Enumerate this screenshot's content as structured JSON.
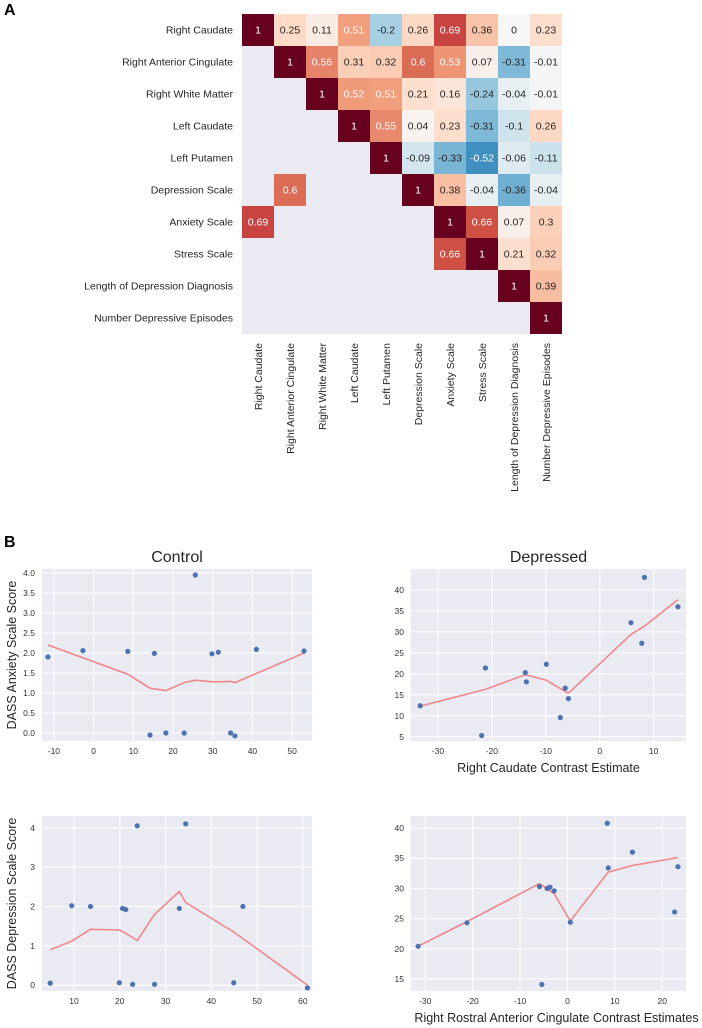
{
  "panel_labels": {
    "a": "A",
    "b": "B"
  },
  "chart_data": [
    {
      "type": "heatmap",
      "id": "correlation-matrix",
      "rows": [
        "Right Caudate",
        "Right Anterior Cingulate",
        "Right White Matter",
        "Left Caudate",
        "Left Putamen",
        "Depression Scale",
        "Anxiety Scale",
        "Stress Scale",
        "Length of Depression Diagnosis",
        "Number Depressive Episodes"
      ],
      "columns": [
        "Right Caudate",
        "Right Anterior Cingulate",
        "Right White Matter",
        "Left Caudate",
        "Left Putamen",
        "Depression Scale",
        "Anxiety Scale",
        "Stress Scale",
        "Length of Depression Diagnosis",
        "Number Depressive Episodes"
      ],
      "cells": [
        {
          "r": 0,
          "c": 0,
          "v": 1,
          "label": "1"
        },
        {
          "r": 0,
          "c": 1,
          "v": 0.25,
          "label": "0.25"
        },
        {
          "r": 0,
          "c": 2,
          "v": 0.11,
          "label": "0.11"
        },
        {
          "r": 0,
          "c": 3,
          "v": 0.51,
          "label": "0.51"
        },
        {
          "r": 0,
          "c": 4,
          "v": -0.2,
          "label": "-0.2"
        },
        {
          "r": 0,
          "c": 5,
          "v": 0.26,
          "label": "0.26"
        },
        {
          "r": 0,
          "c": 6,
          "v": 0.69,
          "label": "0.69"
        },
        {
          "r": 0,
          "c": 7,
          "v": 0.36,
          "label": "0.36"
        },
        {
          "r": 0,
          "c": 8,
          "v": 0,
          "label": "0"
        },
        {
          "r": 0,
          "c": 9,
          "v": 0.23,
          "label": "0.23"
        },
        {
          "r": 1,
          "c": 1,
          "v": 1,
          "label": "1"
        },
        {
          "r": 1,
          "c": 2,
          "v": 0.56,
          "label": "0.56"
        },
        {
          "r": 1,
          "c": 3,
          "v": 0.31,
          "label": "0.31"
        },
        {
          "r": 1,
          "c": 4,
          "v": 0.32,
          "label": "0.32"
        },
        {
          "r": 1,
          "c": 5,
          "v": 0.6,
          "label": "0.6"
        },
        {
          "r": 1,
          "c": 6,
          "v": 0.53,
          "label": "0.53"
        },
        {
          "r": 1,
          "c": 7,
          "v": 0.07,
          "label": "0.07"
        },
        {
          "r": 1,
          "c": 8,
          "v": -0.31,
          "label": "-0.31"
        },
        {
          "r": 1,
          "c": 9,
          "v": -0.01,
          "label": "-0.01"
        },
        {
          "r": 2,
          "c": 2,
          "v": 1,
          "label": "1"
        },
        {
          "r": 2,
          "c": 3,
          "v": 0.52,
          "label": "0.52"
        },
        {
          "r": 2,
          "c": 4,
          "v": 0.51,
          "label": "0.51"
        },
        {
          "r": 2,
          "c": 5,
          "v": 0.21,
          "label": "0.21"
        },
        {
          "r": 2,
          "c": 6,
          "v": 0.16,
          "label": "0.16"
        },
        {
          "r": 2,
          "c": 7,
          "v": -0.24,
          "label": "-0.24"
        },
        {
          "r": 2,
          "c": 8,
          "v": -0.04,
          "label": "-0.04"
        },
        {
          "r": 2,
          "c": 9,
          "v": -0.01,
          "label": "-0.01"
        },
        {
          "r": 3,
          "c": 3,
          "v": 1,
          "label": "1"
        },
        {
          "r": 3,
          "c": 4,
          "v": 0.55,
          "label": "0.55"
        },
        {
          "r": 3,
          "c": 5,
          "v": 0.04,
          "label": "0.04"
        },
        {
          "r": 3,
          "c": 6,
          "v": 0.23,
          "label": "0.23"
        },
        {
          "r": 3,
          "c": 7,
          "v": -0.31,
          "label": "-0.31"
        },
        {
          "r": 3,
          "c": 8,
          "v": -0.1,
          "label": "-0.1"
        },
        {
          "r": 3,
          "c": 9,
          "v": 0.26,
          "label": "0.26"
        },
        {
          "r": 4,
          "c": 4,
          "v": 1,
          "label": "1"
        },
        {
          "r": 4,
          "c": 5,
          "v": -0.09,
          "label": "-0.09"
        },
        {
          "r": 4,
          "c": 6,
          "v": -0.33,
          "label": "-0.33"
        },
        {
          "r": 4,
          "c": 7,
          "v": -0.52,
          "label": "-0.52"
        },
        {
          "r": 4,
          "c": 8,
          "v": -0.06,
          "label": "-0.06"
        },
        {
          "r": 4,
          "c": 9,
          "v": -0.11,
          "label": "-0.11"
        },
        {
          "r": 5,
          "c": 1,
          "v": 0.6,
          "label": "0.6"
        },
        {
          "r": 5,
          "c": 5,
          "v": 1,
          "label": "1"
        },
        {
          "r": 5,
          "c": 6,
          "v": 0.38,
          "label": "0.38"
        },
        {
          "r": 5,
          "c": 7,
          "v": -0.04,
          "label": "-0.04"
        },
        {
          "r": 5,
          "c": 8,
          "v": -0.36,
          "label": "-0.36"
        },
        {
          "r": 5,
          "c": 9,
          "v": -0.04,
          "label": "-0.04"
        },
        {
          "r": 6,
          "c": 0,
          "v": 0.69,
          "label": "0.69"
        },
        {
          "r": 6,
          "c": 6,
          "v": 1,
          "label": "1"
        },
        {
          "r": 6,
          "c": 7,
          "v": 0.66,
          "label": "0.66"
        },
        {
          "r": 6,
          "c": 8,
          "v": 0.07,
          "label": "0.07"
        },
        {
          "r": 6,
          "c": 9,
          "v": 0.3,
          "label": "0.3"
        },
        {
          "r": 7,
          "c": 6,
          "v": 0.66,
          "label": "0.66"
        },
        {
          "r": 7,
          "c": 7,
          "v": 1,
          "label": "1"
        },
        {
          "r": 7,
          "c": 8,
          "v": 0.21,
          "label": "0.21"
        },
        {
          "r": 7,
          "c": 9,
          "v": 0.32,
          "label": "0.32"
        },
        {
          "r": 8,
          "c": 8,
          "v": 1,
          "label": "1"
        },
        {
          "r": 8,
          "c": 9,
          "v": 0.39,
          "label": "0.39"
        },
        {
          "r": 9,
          "c": 9,
          "v": 1,
          "label": "1"
        }
      ]
    },
    {
      "type": "scatter",
      "id": "control-anxiety",
      "title": "Control",
      "xlabel": "",
      "ylabel": "DASS Anxiety Scale Score",
      "xlim": [
        -13,
        55
      ],
      "ylim": [
        -0.2,
        4.1
      ],
      "xticks": [
        -10,
        0,
        10,
        20,
        30,
        40,
        50
      ],
      "yticks": [
        0.0,
        0.5,
        1.0,
        1.5,
        2.0,
        2.5,
        3.0,
        3.5,
        4.0
      ],
      "ytick_decimals": 1,
      "points": [
        [
          -11.5,
          1.9
        ],
        [
          -2.7,
          2.06
        ],
        [
          8.6,
          2.04
        ],
        [
          14.2,
          -0.05
        ],
        [
          15.3,
          1.99
        ],
        [
          18.2,
          0.0
        ],
        [
          22.8,
          0.0
        ],
        [
          25.6,
          3.95
        ],
        [
          29.8,
          1.98
        ],
        [
          31.4,
          2.02
        ],
        [
          34.5,
          0.0
        ],
        [
          35.6,
          -0.07
        ],
        [
          41.0,
          2.09
        ],
        [
          53.0,
          2.05
        ]
      ],
      "fit": [
        [
          -11.5,
          2.2
        ],
        [
          8.6,
          1.47
        ],
        [
          14.2,
          1.12
        ],
        [
          18.2,
          1.06
        ],
        [
          22.8,
          1.26
        ],
        [
          25.6,
          1.32
        ],
        [
          29.8,
          1.28
        ],
        [
          31.4,
          1.28
        ],
        [
          34.5,
          1.29
        ],
        [
          35.6,
          1.26
        ],
        [
          53.0,
          2.0
        ]
      ]
    },
    {
      "type": "scatter",
      "id": "depressed-anxiety",
      "title": "Depressed",
      "xlabel": "Right Caudate Contrast Estimate",
      "ylabel": "",
      "xlim": [
        -35,
        16
      ],
      "ylim": [
        4,
        45
      ],
      "xticks": [
        -30,
        -20,
        -10,
        0,
        10
      ],
      "yticks": [
        5,
        10,
        15,
        20,
        25,
        30,
        35,
        40
      ],
      "ytick_decimals": 0,
      "points": [
        [
          -33.3,
          12.4
        ],
        [
          -21.9,
          5.3
        ],
        [
          -21.2,
          21.4
        ],
        [
          -13.8,
          20.3
        ],
        [
          -13.6,
          18.1
        ],
        [
          -9.9,
          22.3
        ],
        [
          -7.3,
          9.6
        ],
        [
          -6.4,
          16.6
        ],
        [
          -5.8,
          14.1
        ],
        [
          5.8,
          32.2
        ],
        [
          7.8,
          27.3
        ],
        [
          8.3,
          43.0
        ],
        [
          14.5,
          36.0
        ]
      ],
      "fit": [
        [
          -33.3,
          12.3
        ],
        [
          -21.2,
          16.3
        ],
        [
          -13.8,
          19.8
        ],
        [
          -9.9,
          18.5
        ],
        [
          -6.4,
          15.8
        ],
        [
          -5.8,
          15.4
        ],
        [
          5.8,
          29.4
        ],
        [
          8.3,
          31.4
        ],
        [
          14.5,
          37.7
        ]
      ]
    },
    {
      "type": "scatter",
      "id": "control-depression",
      "title": "",
      "xlabel": "",
      "ylabel": "DASS Depression Scale Score",
      "xlim": [
        3,
        62
      ],
      "ylim": [
        -0.15,
        4.3
      ],
      "xticks": [
        10,
        20,
        30,
        40,
        50,
        60
      ],
      "yticks": [
        0,
        1,
        2,
        3,
        4
      ],
      "ytick_decimals": 0,
      "points": [
        [
          4.8,
          0.05
        ],
        [
          9.5,
          2.02
        ],
        [
          13.6,
          2.0
        ],
        [
          19.9,
          0.06
        ],
        [
          20.6,
          1.95
        ],
        [
          21.3,
          1.92
        ],
        [
          22.8,
          0.02
        ],
        [
          23.8,
          4.05
        ],
        [
          27.6,
          0.02
        ],
        [
          33.0,
          1.95
        ],
        [
          34.4,
          4.1
        ],
        [
          44.9,
          0.06
        ],
        [
          46.9,
          2.0
        ],
        [
          61.0,
          -0.07
        ]
      ],
      "fit": [
        [
          4.8,
          0.9
        ],
        [
          9.5,
          1.12
        ],
        [
          13.6,
          1.42
        ],
        [
          19.9,
          1.4
        ],
        [
          21.3,
          1.32
        ],
        [
          23.8,
          1.13
        ],
        [
          27.6,
          1.8
        ],
        [
          33.0,
          2.38
        ],
        [
          34.4,
          2.1
        ],
        [
          44.9,
          1.35
        ],
        [
          61.0,
          0.0
        ]
      ]
    },
    {
      "type": "scatter",
      "id": "depressed-depression",
      "title": "",
      "xlabel": "Right Rostral Anterior Cingulate Contrast Estimates",
      "ylabel": "",
      "xlim": [
        -33,
        25
      ],
      "ylim": [
        13,
        42
      ],
      "xticks": [
        -30,
        -20,
        -10,
        0,
        10,
        20
      ],
      "yticks": [
        15,
        20,
        25,
        30,
        35,
        40
      ],
      "ytick_decimals": 0,
      "points": [
        [
          -31.5,
          20.4
        ],
        [
          -21.2,
          24.3
        ],
        [
          -5.9,
          30.3
        ],
        [
          -5.4,
          14.1
        ],
        [
          -4.3,
          30.0
        ],
        [
          -3.7,
          30.2
        ],
        [
          -2.8,
          29.6
        ],
        [
          0.6,
          24.4
        ],
        [
          8.4,
          40.8
        ],
        [
          8.6,
          33.4
        ],
        [
          13.7,
          36.0
        ],
        [
          22.6,
          26.1
        ],
        [
          23.3,
          33.6
        ]
      ],
      "fit": [
        [
          -31.5,
          20.4
        ],
        [
          -21.2,
          24.5
        ],
        [
          -5.9,
          30.8
        ],
        [
          -2.8,
          29.1
        ],
        [
          0.6,
          24.6
        ],
        [
          8.6,
          32.7
        ],
        [
          13.7,
          33.8
        ],
        [
          23.3,
          35.1
        ]
      ]
    }
  ]
}
